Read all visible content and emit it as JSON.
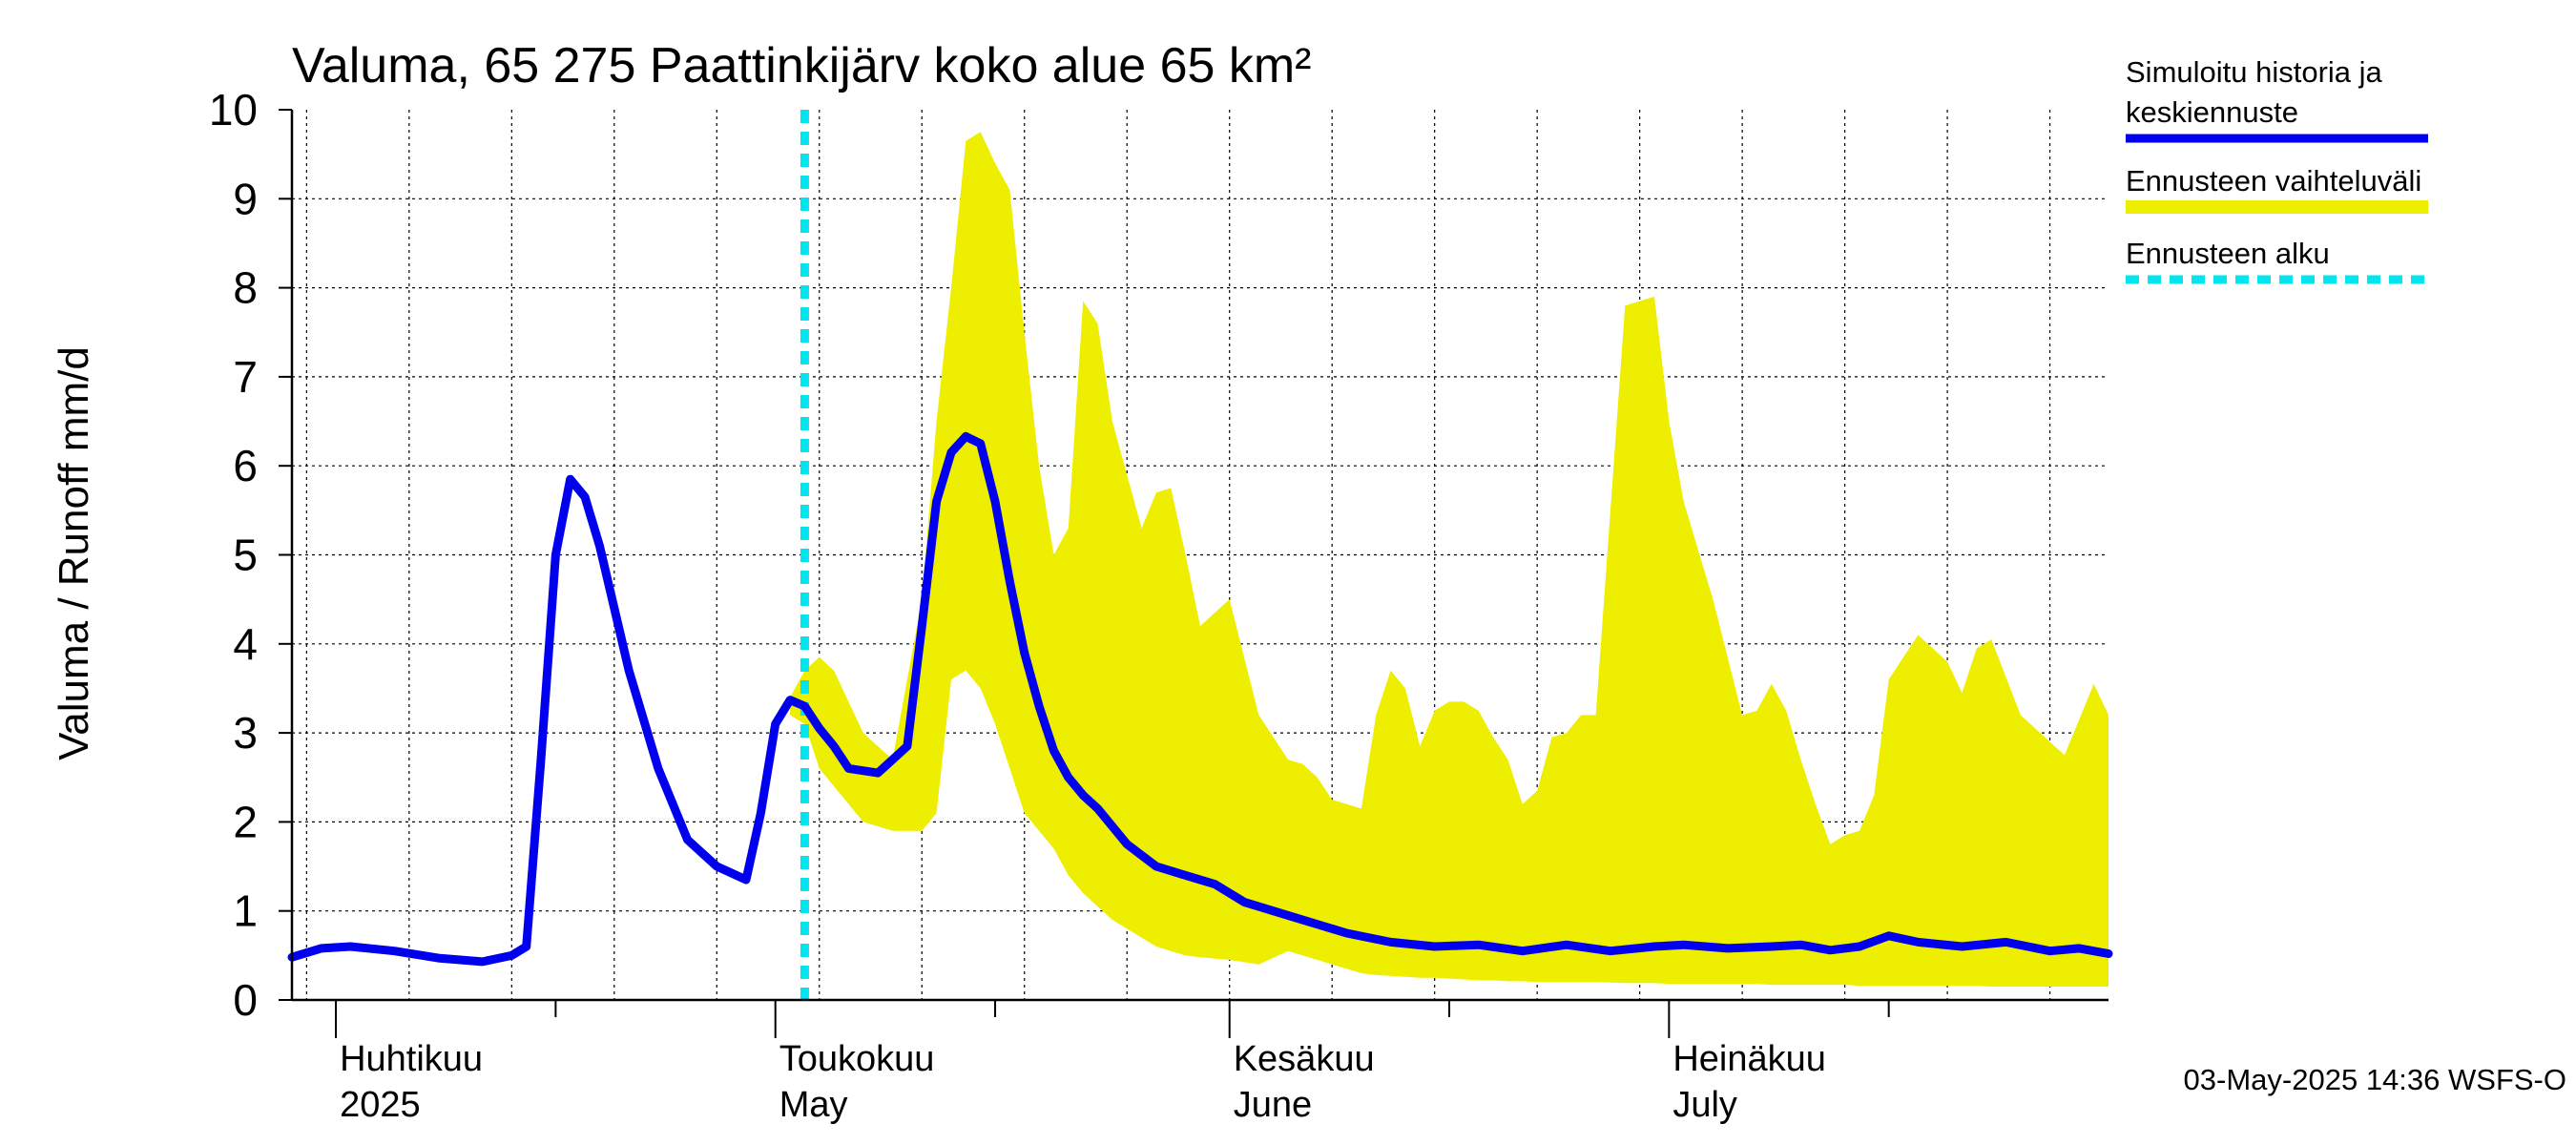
{
  "chart_data": {
    "type": "line",
    "title": "Valuma, 65 275 Paattinkijärv koko alue 65 km²",
    "ylabel": "Valuma / Runoff     mm/d",
    "ylim": [
      0,
      10
    ],
    "yticks": [
      0,
      1,
      2,
      3,
      4,
      5,
      6,
      7,
      8,
      9,
      10
    ],
    "ytick_labels": [
      "0",
      "1",
      "2",
      "3",
      "4",
      "5",
      "6",
      "7",
      "8",
      "9",
      "10"
    ],
    "grid": true,
    "x_start": "2025-03-29",
    "xlim": [
      "2025-03-29",
      "2025-07-31"
    ],
    "month_labels": [
      {
        "date": "2025-04-01",
        "fi": "Huhtikuu",
        "en": "2025"
      },
      {
        "date": "2025-05-01",
        "fi": "Toukokuu",
        "en": "May"
      },
      {
        "date": "2025-06-01",
        "fi": "Kesäkuu",
        "en": "June"
      },
      {
        "date": "2025-07-01",
        "fi": "Heinäkuu",
        "en": "July"
      }
    ],
    "forecast_start": "2025-05-03",
    "series": [
      {
        "name": "Simuloitu historia ja keskiennuste",
        "color": "#0000ee",
        "x": [
          "2025-03-29",
          "2025-03-31",
          "2025-04-02",
          "2025-04-05",
          "2025-04-08",
          "2025-04-11",
          "2025-04-13",
          "2025-04-14",
          "2025-04-15",
          "2025-04-16",
          "2025-04-17",
          "2025-04-18",
          "2025-04-19",
          "2025-04-21",
          "2025-04-23",
          "2025-04-25",
          "2025-04-27",
          "2025-04-29",
          "2025-04-30",
          "2025-05-01",
          "2025-05-02",
          "2025-05-03",
          "2025-05-04",
          "2025-05-05",
          "2025-05-06",
          "2025-05-08",
          "2025-05-10",
          "2025-05-11",
          "2025-05-12",
          "2025-05-13",
          "2025-05-14",
          "2025-05-15",
          "2025-05-16",
          "2025-05-17",
          "2025-05-18",
          "2025-05-19",
          "2025-05-20",
          "2025-05-21",
          "2025-05-22",
          "2025-05-23",
          "2025-05-25",
          "2025-05-27",
          "2025-05-29",
          "2025-05-31",
          "2025-06-02",
          "2025-06-05",
          "2025-06-09",
          "2025-06-12",
          "2025-06-15",
          "2025-06-18",
          "2025-06-21",
          "2025-06-24",
          "2025-06-27",
          "2025-06-30",
          "2025-07-02",
          "2025-07-05",
          "2025-07-08",
          "2025-07-10",
          "2025-07-12",
          "2025-07-14",
          "2025-07-16",
          "2025-07-18",
          "2025-07-21",
          "2025-07-24",
          "2025-07-27",
          "2025-07-29",
          "2025-07-31"
        ],
        "y": [
          0.48,
          0.58,
          0.6,
          0.55,
          0.47,
          0.43,
          0.5,
          0.6,
          2.7,
          5.0,
          5.85,
          5.65,
          5.1,
          3.7,
          2.6,
          1.8,
          1.5,
          1.35,
          2.1,
          3.1,
          3.37,
          3.3,
          3.05,
          2.85,
          2.6,
          2.55,
          2.85,
          4.2,
          5.6,
          6.15,
          6.33,
          6.25,
          5.6,
          4.7,
          3.9,
          3.3,
          2.8,
          2.5,
          2.3,
          2.15,
          1.75,
          1.5,
          1.4,
          1.3,
          1.1,
          0.95,
          0.75,
          0.65,
          0.6,
          0.62,
          0.55,
          0.62,
          0.55,
          0.6,
          0.62,
          0.58,
          0.6,
          0.62,
          0.56,
          0.6,
          0.72,
          0.65,
          0.6,
          0.65,
          0.55,
          0.58,
          0.52
        ]
      },
      {
        "name": "Ennusteen vaihteluväli",
        "color": "#eeee00",
        "x": [
          "2025-05-02",
          "2025-05-03",
          "2025-05-04",
          "2025-05-05",
          "2025-05-07",
          "2025-05-09",
          "2025-05-11",
          "2025-05-12",
          "2025-05-13",
          "2025-05-14",
          "2025-05-15",
          "2025-05-16",
          "2025-05-17",
          "2025-05-18",
          "2025-05-19",
          "2025-05-20",
          "2025-05-21",
          "2025-05-22",
          "2025-05-23",
          "2025-05-24",
          "2025-05-25",
          "2025-05-26",
          "2025-05-27",
          "2025-05-28",
          "2025-05-29",
          "2025-05-30",
          "2025-06-01",
          "2025-06-03",
          "2025-06-05",
          "2025-06-06",
          "2025-06-07",
          "2025-06-08",
          "2025-06-09",
          "2025-06-10",
          "2025-06-11",
          "2025-06-12",
          "2025-06-13",
          "2025-06-14",
          "2025-06-15",
          "2025-06-16",
          "2025-06-17",
          "2025-06-18",
          "2025-06-19",
          "2025-06-20",
          "2025-06-21",
          "2025-06-22",
          "2025-06-23",
          "2025-06-24",
          "2025-06-25",
          "2025-06-26",
          "2025-06-28",
          "2025-06-30",
          "2025-07-01",
          "2025-07-02",
          "2025-07-04",
          "2025-07-06",
          "2025-07-07",
          "2025-07-08",
          "2025-07-09",
          "2025-07-10",
          "2025-07-11",
          "2025-07-12",
          "2025-07-13",
          "2025-07-14",
          "2025-07-15",
          "2025-07-16",
          "2025-07-18",
          "2025-07-20",
          "2025-07-21",
          "2025-07-22",
          "2025-07-23",
          "2025-07-25",
          "2025-07-27",
          "2025-07-28",
          "2025-07-29",
          "2025-07-30",
          "2025-07-31"
        ],
        "upper": [
          3.4,
          3.7,
          3.85,
          3.7,
          3.0,
          2.7,
          4.5,
          6.5,
          8.0,
          9.65,
          9.75,
          9.4,
          9.1,
          7.5,
          6.0,
          5.0,
          5.3,
          7.85,
          7.6,
          6.5,
          5.9,
          5.3,
          5.7,
          5.75,
          5.0,
          4.2,
          4.5,
          3.2,
          2.7,
          2.65,
          2.5,
          2.25,
          2.2,
          2.15,
          3.2,
          3.7,
          3.5,
          2.85,
          3.25,
          3.35,
          3.35,
          3.25,
          2.95,
          2.7,
          2.2,
          2.35,
          2.95,
          3.0,
          3.2,
          3.2,
          7.8,
          7.9,
          6.5,
          5.6,
          4.5,
          3.2,
          3.25,
          3.55,
          3.25,
          2.7,
          2.2,
          1.75,
          1.85,
          1.9,
          2.3,
          3.6,
          4.1,
          3.8,
          3.45,
          3.95,
          4.05,
          3.2,
          2.9,
          2.75,
          3.15,
          3.55,
          3.2
        ],
        "lower": [
          3.2,
          3.1,
          2.6,
          2.4,
          2.0,
          1.9,
          1.9,
          2.1,
          3.6,
          3.7,
          3.5,
          3.1,
          2.6,
          2.1,
          1.9,
          1.7,
          1.4,
          1.2,
          1.05,
          0.9,
          0.8,
          0.7,
          0.6,
          0.55,
          0.5,
          0.48,
          0.45,
          0.4,
          0.55,
          0.5,
          0.45,
          0.4,
          0.35,
          0.3,
          0.28,
          0.27,
          0.26,
          0.25,
          0.25,
          0.24,
          0.23,
          0.22,
          0.22,
          0.21,
          0.21,
          0.2,
          0.2,
          0.2,
          0.2,
          0.2,
          0.19,
          0.19,
          0.18,
          0.18,
          0.18,
          0.18,
          0.18,
          0.17,
          0.17,
          0.17,
          0.17,
          0.17,
          0.17,
          0.16,
          0.16,
          0.16,
          0.16,
          0.16,
          0.16,
          0.16,
          0.15,
          0.15,
          0.15,
          0.15,
          0.15,
          0.15,
          0.15
        ]
      },
      {
        "name": "Ennusteen alku",
        "color": "#00e5ee",
        "x": [
          "2025-05-03",
          "2025-05-03"
        ],
        "y": [
          0,
          10
        ]
      }
    ],
    "legend_position": "right",
    "footer": "03-May-2025 14:36 WSFS-O"
  }
}
